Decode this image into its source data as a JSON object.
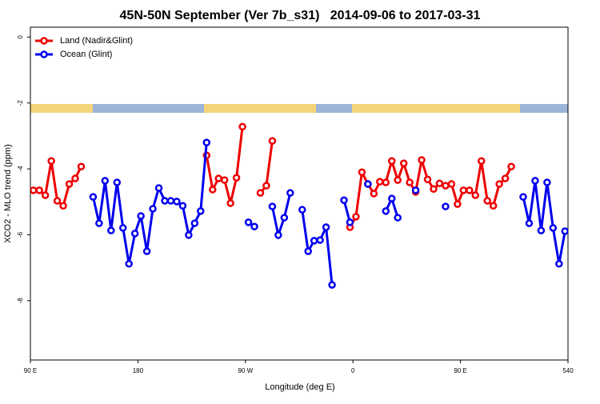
{
  "chart_data": {
    "type": "line",
    "title": "45N-50N September (Ver 7b_s31)   2014-09-06 to 2017-03-31",
    "xlabel": "Longitude (deg E)",
    "ylabel": "XCO2 - MLO trend (ppm)",
    "x": [
      92.5,
      97.5,
      102.5,
      107.5,
      112.5,
      117.5,
      122.5,
      127.5,
      132.5,
      137.5,
      142.5,
      147.5,
      152.5,
      157.5,
      162.5,
      167.5,
      172.5,
      177.5,
      182.5,
      187.5,
      192.5,
      197.5,
      202.5,
      207.5,
      212.5,
      217.5,
      222.5,
      227.5,
      232.5,
      237.5,
      242.5,
      247.5,
      252.5,
      257.5,
      262.5,
      267.5,
      272.5,
      277.5,
      282.5,
      287.5,
      292.5,
      297.5,
      302.5,
      307.5,
      312.5,
      317.5,
      322.5,
      327.5,
      332.5,
      337.5,
      342.5,
      347.5,
      352.5,
      357.5,
      362.5,
      367.5,
      372.5,
      377.5,
      382.5,
      387.5,
      392.5,
      397.5,
      402.5,
      407.5,
      412.5,
      417.5,
      422.5,
      427.5,
      432.5,
      437.5,
      442.5,
      447.5,
      452.5,
      457.5,
      462.5,
      467.5,
      472.5,
      477.5,
      482.5,
      487.5,
      492.5,
      497.5,
      502.5,
      507.5,
      512.5,
      517.5,
      522.5,
      527.5,
      532.5,
      537.5
    ],
    "series": [
      {
        "name": "Land (Nadir&Glint)",
        "color": "#ee0000",
        "values": [
          -4.65,
          -4.65,
          -4.8,
          -3.76,
          -4.97,
          -5.12,
          -4.46,
          -4.29,
          -3.93,
          null,
          null,
          null,
          null,
          null,
          null,
          null,
          null,
          null,
          null,
          null,
          null,
          null,
          null,
          null,
          null,
          null,
          null,
          null,
          null,
          -3.59,
          -4.63,
          -4.29,
          -4.34,
          -5.04,
          -4.27,
          -2.72,
          null,
          null,
          -4.73,
          -4.51,
          -3.15,
          null,
          null,
          null,
          null,
          null,
          null,
          null,
          null,
          null,
          null,
          null,
          null,
          -5.77,
          -5.45,
          -4.1,
          -4.46,
          -4.75,
          -4.39,
          -4.41,
          -3.76,
          -4.34,
          -3.83,
          -4.41,
          -4.7,
          -3.73,
          -4.32,
          -4.61,
          -4.44,
          -4.51,
          -4.46,
          -5.07,
          -4.65,
          -4.65,
          -4.8,
          -3.76,
          -4.97,
          -5.12,
          -4.46,
          -4.29,
          -3.93,
          null,
          null,
          null,
          null,
          null,
          null,
          null,
          null,
          null
        ]
      },
      {
        "name": "Ocean (Glint)",
        "color": "#0000ee",
        "values": [
          null,
          null,
          null,
          null,
          null,
          null,
          null,
          null,
          null,
          null,
          -4.85,
          -5.65,
          -4.36,
          -5.87,
          -4.41,
          -5.79,
          -6.88,
          -5.96,
          -5.43,
          -6.5,
          -5.21,
          -4.58,
          -4.97,
          -4.97,
          -4.99,
          -5.12,
          -6.01,
          -5.65,
          -5.28,
          -3.2,
          null,
          null,
          null,
          null,
          null,
          null,
          -5.62,
          -5.75,
          null,
          null,
          -5.14,
          -6.01,
          -5.48,
          -4.73,
          null,
          -5.24,
          -6.5,
          -6.18,
          -6.16,
          -5.77,
          -7.52,
          null,
          -4.95,
          -5.62,
          null,
          null,
          -4.46,
          null,
          null,
          -5.28,
          -4.9,
          -5.48,
          null,
          null,
          -4.65,
          null,
          null,
          null,
          null,
          -5.14,
          null,
          null,
          null,
          null,
          null,
          null,
          null,
          null,
          null,
          null,
          null,
          null,
          -4.85,
          -5.65,
          -4.36,
          -5.87,
          -4.41,
          -5.79,
          -6.88,
          -5.89
        ]
      }
    ],
    "xlim": [
      90,
      540
    ],
    "ylim": [
      -9.8,
      0.3
    ],
    "xticks": [
      {
        "value": 90,
        "label": "90 E"
      },
      180,
      {
        "value": 270,
        "label": "90 W"
      },
      {
        "value": 360,
        "label": "0"
      },
      {
        "value": 450,
        "label": "90 E"
      },
      540
    ],
    "yticks": [
      0,
      -2,
      -4,
      -6,
      -8
    ],
    "legend": "top-left"
  }
}
